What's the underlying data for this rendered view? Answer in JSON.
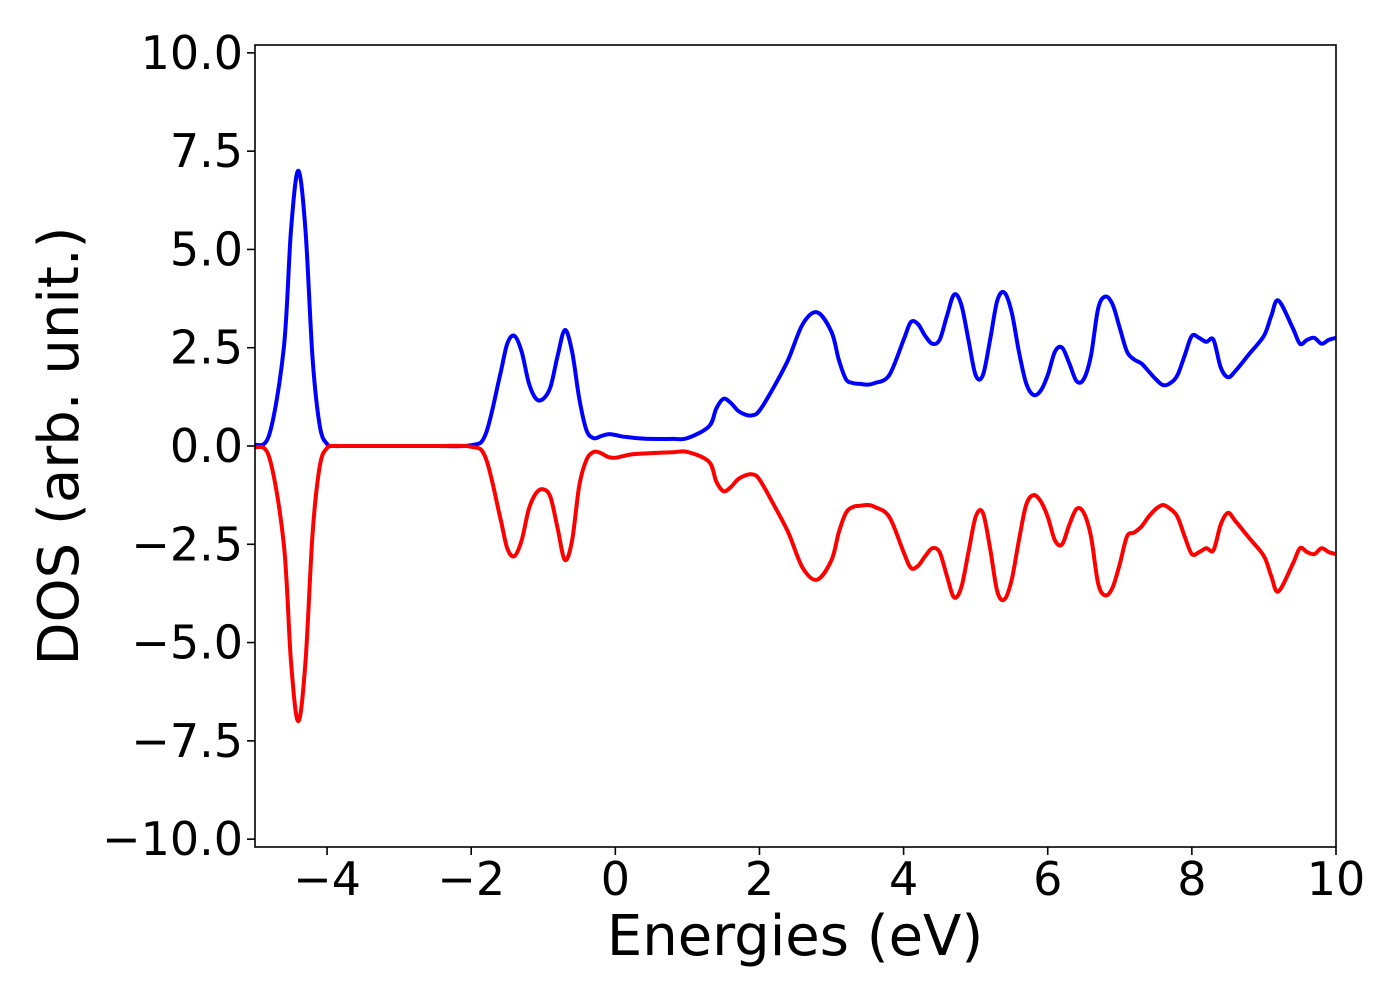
{
  "chart_data": {
    "type": "line",
    "title": "",
    "xlabel": "Energies (eV)",
    "ylabel": "DOS (arb. unit.)",
    "xlim": [
      -5,
      10
    ],
    "ylim": [
      -10.2,
      10.2
    ],
    "grid": false,
    "x_ticks": [
      "−4",
      "−2",
      "0",
      "2",
      "4",
      "6",
      "8",
      "10"
    ],
    "y_ticks": [
      "10.0",
      "7.5",
      "5.0",
      "2.5",
      "0.0",
      "−2.5",
      "−5.0",
      "−7.5",
      "−10.0"
    ],
    "series": [
      {
        "color": "#0000ff",
        "x": [
          -5.0,
          -4.8,
          -4.6,
          -4.5,
          -4.4,
          -4.3,
          -4.2,
          -4.1,
          -4.0,
          -3.9,
          -3.8,
          -3.5,
          -3.0,
          -2.5,
          -2.0,
          -1.8,
          -1.6,
          -1.5,
          -1.4,
          -1.3,
          -1.2,
          -1.1,
          -1.0,
          -0.9,
          -0.8,
          -0.7,
          -0.6,
          -0.5,
          -0.4,
          -0.3,
          -0.2,
          -0.1,
          0.0,
          0.1,
          0.2,
          0.3,
          0.5,
          0.8,
          1.0,
          1.3,
          1.4,
          1.5,
          1.6,
          1.7,
          1.8,
          1.9,
          2.0,
          2.2,
          2.4,
          2.6,
          2.8,
          3.0,
          3.1,
          3.2,
          3.3,
          3.4,
          3.5,
          3.6,
          3.8,
          4.0,
          4.1,
          4.2,
          4.3,
          4.4,
          4.5,
          4.6,
          4.7,
          4.8,
          4.9,
          5.0,
          5.1,
          5.2,
          5.3,
          5.4,
          5.5,
          5.6,
          5.7,
          5.8,
          5.9,
          6.0,
          6.1,
          6.2,
          6.3,
          6.4,
          6.5,
          6.6,
          6.7,
          6.8,
          6.9,
          7.0,
          7.1,
          7.2,
          7.3,
          7.4,
          7.5,
          7.6,
          7.7,
          7.8,
          7.9,
          8.0,
          8.1,
          8.2,
          8.3,
          8.4,
          8.5,
          8.6,
          8.8,
          9.0,
          9.1,
          9.2,
          9.4,
          9.5,
          9.6,
          9.7,
          9.8,
          9.9,
          10.0
        ],
        "y": [
          0.02,
          0.3,
          2.5,
          5.5,
          7.0,
          5.5,
          2.2,
          0.5,
          0.05,
          0.0,
          0.0,
          0.0,
          0.0,
          0.0,
          0.02,
          0.3,
          1.8,
          2.6,
          2.8,
          2.4,
          1.6,
          1.2,
          1.2,
          1.5,
          2.3,
          2.95,
          2.4,
          1.2,
          0.4,
          0.2,
          0.25,
          0.3,
          0.28,
          0.24,
          0.22,
          0.2,
          0.18,
          0.18,
          0.2,
          0.5,
          0.95,
          1.2,
          1.1,
          0.9,
          0.8,
          0.78,
          0.9,
          1.5,
          2.2,
          3.1,
          3.4,
          2.9,
          2.2,
          1.7,
          1.6,
          1.58,
          1.56,
          1.6,
          1.8,
          2.7,
          3.15,
          3.1,
          2.8,
          2.6,
          2.7,
          3.3,
          3.85,
          3.6,
          2.7,
          1.8,
          1.8,
          2.7,
          3.7,
          3.9,
          3.4,
          2.4,
          1.6,
          1.3,
          1.4,
          1.8,
          2.4,
          2.5,
          2.1,
          1.65,
          1.7,
          2.3,
          3.5,
          3.8,
          3.6,
          3.0,
          2.4,
          2.2,
          2.1,
          1.9,
          1.7,
          1.55,
          1.6,
          1.8,
          2.3,
          2.8,
          2.75,
          2.65,
          2.7,
          2.0,
          1.75,
          1.9,
          2.35,
          2.8,
          3.3,
          3.7,
          3.0,
          2.6,
          2.7,
          2.75,
          2.6,
          2.7,
          2.75
        ]
      },
      {
        "color": "#ff0000",
        "x": [
          -5.0,
          -4.8,
          -4.6,
          -4.5,
          -4.4,
          -4.3,
          -4.2,
          -4.1,
          -4.0,
          -3.9,
          -3.8,
          -3.5,
          -3.0,
          -2.5,
          -2.0,
          -1.8,
          -1.6,
          -1.5,
          -1.4,
          -1.3,
          -1.2,
          -1.1,
          -1.0,
          -0.9,
          -0.8,
          -0.7,
          -0.6,
          -0.5,
          -0.4,
          -0.3,
          -0.2,
          -0.1,
          0.0,
          0.1,
          0.2,
          0.3,
          0.5,
          0.8,
          1.0,
          1.3,
          1.4,
          1.5,
          1.6,
          1.7,
          1.8,
          1.9,
          2.0,
          2.2,
          2.4,
          2.6,
          2.8,
          3.0,
          3.1,
          3.2,
          3.3,
          3.4,
          3.5,
          3.6,
          3.8,
          4.0,
          4.1,
          4.2,
          4.3,
          4.4,
          4.5,
          4.6,
          4.7,
          4.8,
          4.9,
          5.0,
          5.1,
          5.2,
          5.3,
          5.4,
          5.5,
          5.6,
          5.7,
          5.8,
          5.9,
          6.0,
          6.1,
          6.2,
          6.3,
          6.4,
          6.5,
          6.6,
          6.7,
          6.8,
          6.9,
          7.0,
          7.1,
          7.2,
          7.3,
          7.4,
          7.5,
          7.6,
          7.7,
          7.8,
          7.9,
          8.0,
          8.1,
          8.2,
          8.3,
          8.4,
          8.5,
          8.6,
          8.8,
          9.0,
          9.1,
          9.2,
          9.4,
          9.5,
          9.6,
          9.7,
          9.8,
          9.9,
          10.0
        ],
        "y": [
          -0.02,
          -0.3,
          -2.5,
          -5.5,
          -7.0,
          -5.5,
          -2.2,
          -0.5,
          -0.05,
          0.0,
          0.0,
          0.0,
          0.0,
          0.0,
          -0.02,
          -0.3,
          -1.8,
          -2.6,
          -2.8,
          -2.4,
          -1.6,
          -1.2,
          -1.1,
          -1.3,
          -2.1,
          -2.9,
          -2.4,
          -1.0,
          -0.35,
          -0.15,
          -0.18,
          -0.28,
          -0.3,
          -0.26,
          -0.22,
          -0.2,
          -0.18,
          -0.16,
          -0.15,
          -0.4,
          -0.9,
          -1.15,
          -1.05,
          -0.85,
          -0.75,
          -0.72,
          -0.85,
          -1.5,
          -2.2,
          -3.1,
          -3.4,
          -2.9,
          -2.2,
          -1.7,
          -1.55,
          -1.52,
          -1.5,
          -1.55,
          -1.8,
          -2.7,
          -3.1,
          -3.05,
          -2.8,
          -2.6,
          -2.7,
          -3.3,
          -3.85,
          -3.6,
          -2.7,
          -1.8,
          -1.7,
          -2.6,
          -3.7,
          -3.9,
          -3.4,
          -2.4,
          -1.5,
          -1.25,
          -1.4,
          -1.8,
          -2.4,
          -2.5,
          -2.0,
          -1.6,
          -1.7,
          -2.3,
          -3.5,
          -3.8,
          -3.6,
          -3.0,
          -2.3,
          -2.2,
          -2.05,
          -1.8,
          -1.6,
          -1.5,
          -1.6,
          -1.8,
          -2.3,
          -2.75,
          -2.7,
          -2.6,
          -2.65,
          -2.0,
          -1.7,
          -1.9,
          -2.35,
          -2.8,
          -3.3,
          -3.7,
          -3.0,
          -2.6,
          -2.7,
          -2.75,
          -2.6,
          -2.7,
          -2.75
        ]
      }
    ]
  }
}
